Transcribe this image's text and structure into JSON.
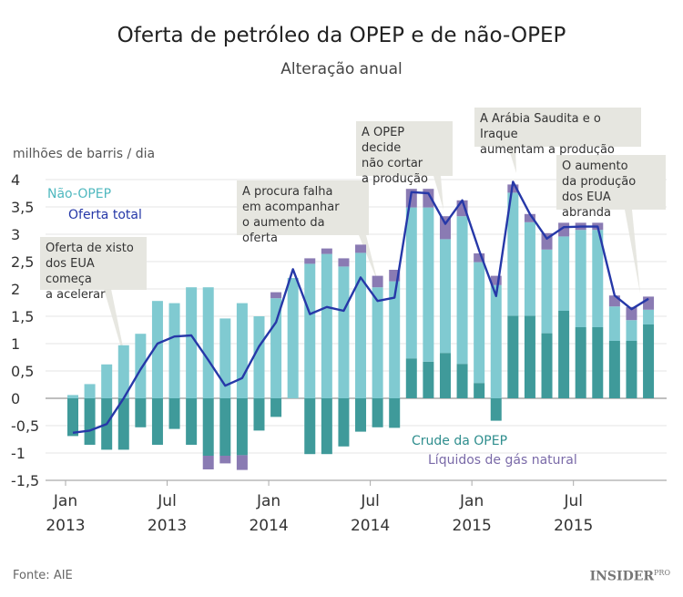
{
  "title": "Oferta de petróleo da OPEP e de não-OPEP",
  "subtitle": "Alteração anual",
  "source": "Fonte: AIE",
  "logo": {
    "main": "INSIDER",
    "sup": "PRO"
  },
  "colors": {
    "non_opec": "#80cad1",
    "crude_opec": "#3f9a9a",
    "ngl": "#8a7bb3",
    "total": "#2638a8",
    "annotation_bg": "#e4e4de"
  },
  "annotations": [
    "Oferta de xisto\ndos EUA começa\na acelerar",
    "A procura falha\nem acompanhar\no aumento da oferta",
    "A OPEP decide\nnão cortar\na produção",
    "A Arábia Saudita e o Iraque\naumentam a produção",
    "O aumento\nda produção\ndos EUA abranda"
  ],
  "chart_data": {
    "type": "bar",
    "stacked": true,
    "ylabel": "milhões de barris / dia",
    "ylim": [
      -1.5,
      4
    ],
    "yticks": [
      "4",
      "3,5",
      "3",
      "2,5",
      "2",
      "1,5",
      "1",
      "0,5",
      "0",
      "-0,5",
      "-1",
      "-1,5"
    ],
    "ytick_values": [
      4,
      3.5,
      3,
      2.5,
      2,
      1.5,
      1,
      0.5,
      0,
      -0.5,
      -1,
      -1.5
    ],
    "xticks": [
      {
        "month": "Jan",
        "year": "2013",
        "index": 0
      },
      {
        "month": "Jul",
        "year": "2013",
        "index": 6
      },
      {
        "month": "Jan",
        "year": "2014",
        "index": 12
      },
      {
        "month": "Jul",
        "year": "2014",
        "index": 18
      },
      {
        "month": "Jan",
        "year": "2015",
        "index": 24
      },
      {
        "month": "Jul",
        "year": "2015",
        "index": 30
      }
    ],
    "x": [
      "2013-01",
      "2013-02",
      "2013-03",
      "2013-04",
      "2013-05",
      "2013-06",
      "2013-07",
      "2013-08",
      "2013-09",
      "2013-10",
      "2013-11",
      "2013-12",
      "2014-01",
      "2014-02",
      "2014-03",
      "2014-04",
      "2014-05",
      "2014-06",
      "2014-07",
      "2014-08",
      "2014-09",
      "2014-10",
      "2014-11",
      "2014-12",
      "2015-01",
      "2015-02",
      "2015-03",
      "2015-04",
      "2015-05",
      "2015-06",
      "2015-07",
      "2015-08",
      "2015-09",
      "2015-10",
      "2015-11"
    ],
    "grid": true,
    "series": [
      {
        "name": "Crude da OPEP",
        "key": "crude",
        "values": [
          -0.69,
          -0.85,
          -0.94,
          -0.94,
          -0.53,
          -0.85,
          -0.56,
          -0.85,
          -1.05,
          -1.05,
          -1.04,
          -0.59,
          -0.34,
          0,
          -1.02,
          -1.02,
          -0.88,
          -0.61,
          -0.53,
          -0.54,
          0.73,
          0.67,
          0.83,
          0.63,
          0.28,
          -0.41,
          1.51,
          1.51,
          1.19,
          1.6,
          1.3,
          1.3,
          1.05,
          1.05,
          1.35
        ]
      },
      {
        "name": "Não-OPEP",
        "key": "non_opec",
        "values": [
          0.06,
          0.26,
          0.62,
          0.97,
          1.18,
          1.78,
          1.74,
          2.03,
          2.03,
          1.46,
          1.74,
          1.5,
          1.83,
          2.2,
          2.46,
          2.64,
          2.41,
          2.66,
          2.03,
          2.14,
          2.76,
          2.82,
          2.08,
          2.7,
          2.21,
          2.07,
          2.25,
          1.71,
          1.53,
          1.36,
          1.78,
          1.78,
          0.63,
          0.38,
          0.27
        ]
      },
      {
        "name": "Líquidos de gás natural",
        "key": "ngl",
        "values": [
          0,
          0,
          0,
          0,
          0,
          0,
          0,
          0,
          -0.25,
          -0.14,
          -0.27,
          0,
          0.11,
          0,
          0.1,
          0.1,
          0.15,
          0.15,
          0.21,
          0.21,
          0.34,
          0.34,
          0.42,
          0.29,
          0.16,
          0.17,
          0.15,
          0.15,
          0.3,
          0.25,
          0.13,
          0.13,
          0.2,
          0.24,
          0.24
        ]
      },
      {
        "name": "Oferta total",
        "key": "total",
        "type": "line",
        "values": [
          -0.63,
          -0.59,
          -0.47,
          0.0,
          0.53,
          1.0,
          1.13,
          1.15,
          0.7,
          0.23,
          0.37,
          0.95,
          1.39,
          2.36,
          1.54,
          1.67,
          1.6,
          2.21,
          1.78,
          1.84,
          3.77,
          3.75,
          3.19,
          3.62,
          2.7,
          1.87,
          3.96,
          3.37,
          2.92,
          3.13,
          3.14,
          3.14,
          1.88,
          1.63,
          1.82
        ]
      }
    ]
  }
}
